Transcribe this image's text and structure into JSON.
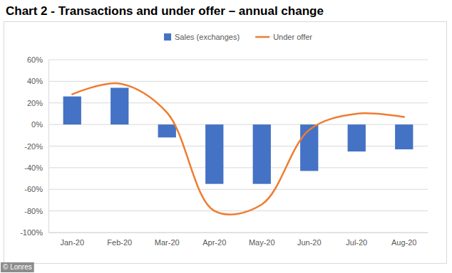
{
  "chart_data": {
    "type": "bar",
    "title": "Chart 2 - Transactions and under offer – annual change",
    "source": "© Lonres",
    "categories": [
      "Jan-20",
      "Feb-20",
      "Mar-20",
      "Apr-20",
      "May-20",
      "Jun-20",
      "Jul-20",
      "Aug-20"
    ],
    "series": [
      {
        "name": "Sales (exchanges)",
        "type": "bar",
        "color": "#4472c4",
        "values": [
          26,
          34,
          -12,
          -55,
          -55,
          -43,
          -25,
          -23
        ]
      },
      {
        "name": "Under offer",
        "type": "line",
        "color": "#ed7d31",
        "marker": "none",
        "values": [
          28,
          38,
          11,
          -80,
          -74,
          -5,
          10,
          7
        ]
      }
    ],
    "ylim": [
      -100,
      60
    ],
    "yticks": [
      {
        "value": -100,
        "label": "-100%"
      },
      {
        "value": -80,
        "label": "-80%"
      },
      {
        "value": -60,
        "label": "-60%"
      },
      {
        "value": -40,
        "label": "-40%"
      },
      {
        "value": -20,
        "label": "-20%"
      },
      {
        "value": 0,
        "label": "0%"
      },
      {
        "value": 20,
        "label": "20%"
      },
      {
        "value": 40,
        "label": "40%"
      },
      {
        "value": 60,
        "label": "60%"
      }
    ],
    "grid": true,
    "legend": "top"
  }
}
